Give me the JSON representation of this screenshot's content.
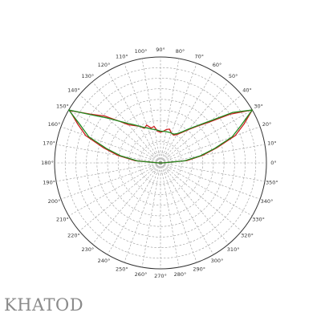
{
  "chart_data": {
    "type": "polar-line",
    "angle_tick_step_deg": 10,
    "angle_labels": [
      "0°",
      "10°",
      "20°",
      "30°",
      "40°",
      "50°",
      "60°",
      "70°",
      "80°",
      "90°",
      "100°",
      "110°",
      "120°",
      "130°",
      "140°",
      "150°",
      "160°",
      "170°",
      "180°",
      "190°",
      "200°",
      "210°",
      "220°",
      "230°",
      "240°",
      "250°",
      "260°",
      "270°",
      "280°",
      "290°",
      "300°",
      "310°",
      "320°",
      "330°",
      "340°",
      "350°"
    ],
    "radial_rings": 10,
    "grid": true,
    "series": [
      {
        "color": "#cc1f1f",
        "points": [
          {
            "angle": 270,
            "r": 0.0
          },
          {
            "angle": 0,
            "r": 0.02
          },
          {
            "angle": 5,
            "r": 0.25
          },
          {
            "angle": 10,
            "r": 0.4
          },
          {
            "angle": 15,
            "r": 0.55
          },
          {
            "angle": 20,
            "r": 0.75
          },
          {
            "angle": 25,
            "r": 0.87
          },
          {
            "angle": 30,
            "r": 1.0
          },
          {
            "angle": 35,
            "r": 0.8
          },
          {
            "angle": 40,
            "r": 0.6
          },
          {
            "angle": 45,
            "r": 0.49
          },
          {
            "angle": 50,
            "r": 0.41
          },
          {
            "angle": 55,
            "r": 0.35
          },
          {
            "angle": 60,
            "r": 0.31
          },
          {
            "angle": 65,
            "r": 0.29
          },
          {
            "angle": 70,
            "r": 0.3
          },
          {
            "angle": 75,
            "r": 0.33
          },
          {
            "angle": 80,
            "r": 0.32
          },
          {
            "angle": 85,
            "r": 0.3
          },
          {
            "angle": 90,
            "r": 0.29
          },
          {
            "angle": 95,
            "r": 0.3
          },
          {
            "angle": 100,
            "r": 0.35
          },
          {
            "angle": 105,
            "r": 0.34
          },
          {
            "angle": 110,
            "r": 0.38
          },
          {
            "angle": 115,
            "r": 0.36
          },
          {
            "angle": 120,
            "r": 0.4
          },
          {
            "angle": 125,
            "r": 0.43
          },
          {
            "angle": 130,
            "r": 0.47
          },
          {
            "angle": 135,
            "r": 0.56
          },
          {
            "angle": 140,
            "r": 0.69
          },
          {
            "angle": 145,
            "r": 0.8
          },
          {
            "angle": 150,
            "r": 0.99
          },
          {
            "angle": 155,
            "r": 0.86
          },
          {
            "angle": 160,
            "r": 0.75
          },
          {
            "angle": 165,
            "r": 0.56
          },
          {
            "angle": 170,
            "r": 0.41
          },
          {
            "angle": 175,
            "r": 0.24
          },
          {
            "angle": 180,
            "r": 0.02
          },
          {
            "angle": 270,
            "r": 0.0
          }
        ]
      },
      {
        "color": "#1f8a1f",
        "points": [
          {
            "angle": 270,
            "r": 0.0
          },
          {
            "angle": 0,
            "r": 0.02
          },
          {
            "angle": 5,
            "r": 0.23
          },
          {
            "angle": 10,
            "r": 0.38
          },
          {
            "angle": 15,
            "r": 0.53
          },
          {
            "angle": 20,
            "r": 0.72
          },
          {
            "angle": 25,
            "r": 0.84
          },
          {
            "angle": 30,
            "r": 1.0
          },
          {
            "angle": 35,
            "r": 0.83
          },
          {
            "angle": 40,
            "r": 0.62
          },
          {
            "angle": 45,
            "r": 0.5
          },
          {
            "angle": 50,
            "r": 0.42
          },
          {
            "angle": 55,
            "r": 0.36
          },
          {
            "angle": 60,
            "r": 0.32
          },
          {
            "angle": 65,
            "r": 0.3
          },
          {
            "angle": 70,
            "r": 0.3
          },
          {
            "angle": 75,
            "r": 0.3
          },
          {
            "angle": 80,
            "r": 0.3
          },
          {
            "angle": 85,
            "r": 0.3
          },
          {
            "angle": 90,
            "r": 0.3
          },
          {
            "angle": 95,
            "r": 0.31
          },
          {
            "angle": 100,
            "r": 0.32
          },
          {
            "angle": 105,
            "r": 0.33
          },
          {
            "angle": 110,
            "r": 0.35
          },
          {
            "angle": 115,
            "r": 0.37
          },
          {
            "angle": 120,
            "r": 0.4
          },
          {
            "angle": 125,
            "r": 0.44
          },
          {
            "angle": 130,
            "r": 0.49
          },
          {
            "angle": 135,
            "r": 0.56
          },
          {
            "angle": 140,
            "r": 0.66
          },
          {
            "angle": 145,
            "r": 0.79
          },
          {
            "angle": 150,
            "r": 1.0
          },
          {
            "angle": 155,
            "r": 0.83
          },
          {
            "angle": 160,
            "r": 0.72
          },
          {
            "angle": 165,
            "r": 0.53
          },
          {
            "angle": 170,
            "r": 0.38
          },
          {
            "angle": 175,
            "r": 0.22
          },
          {
            "angle": 180,
            "r": 0.02
          },
          {
            "angle": 270,
            "r": 0.0
          }
        ]
      }
    ]
  },
  "brand": {
    "text": "KHATOD",
    "color": "#8a8a8a"
  },
  "colors": {
    "grid": "#9a9a9a",
    "outer_circle": "#333333"
  }
}
